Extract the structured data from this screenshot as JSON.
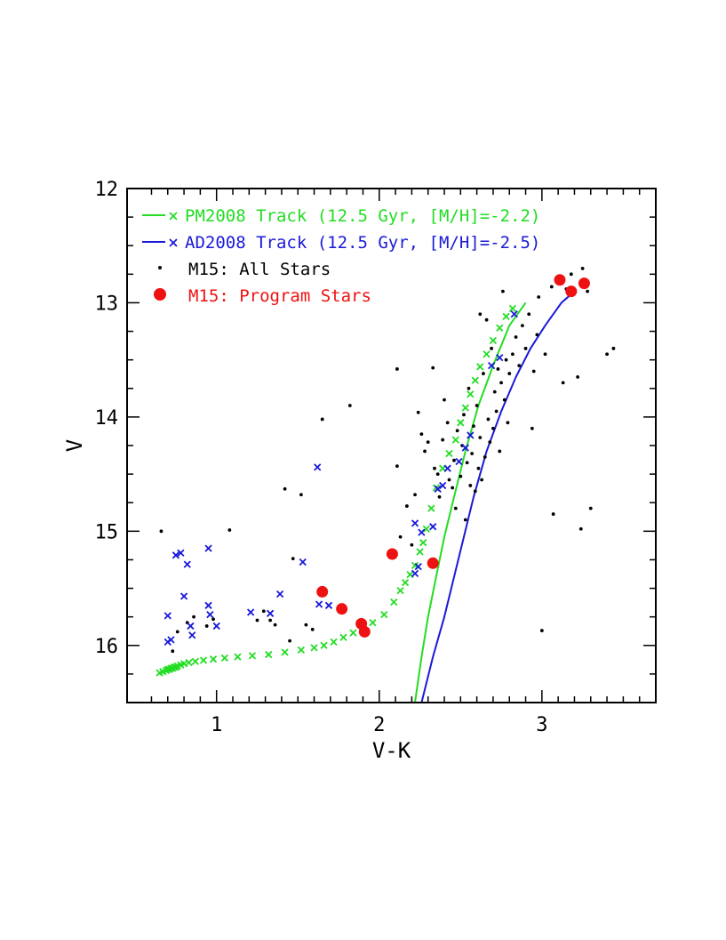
{
  "chart_data": {
    "type": "scatter",
    "xlabel": "V-K",
    "ylabel": "V",
    "xlim": [
      0.45,
      3.7
    ],
    "ylim": [
      16.5,
      12.0
    ],
    "y_inverted": true,
    "grid": false,
    "legend_position": "top-left",
    "x_ticks": [
      1,
      2,
      3
    ],
    "x_tick_labels": [
      "1",
      "2",
      "3"
    ],
    "y_ticks": [
      12,
      13,
      14,
      15,
      16
    ],
    "y_tick_labels": [
      "12",
      "13",
      "14",
      "15",
      "16"
    ],
    "legend": [
      {
        "label": "PM2008 Track (12.5 Gyr, [M/H]=-2.2)",
        "color": "#22dd22",
        "marker": "line-cross"
      },
      {
        "label": "AD2008 Track (12.5 Gyr, [M/H]=-2.5)",
        "color": "#1a1ad8",
        "marker": "line-cross"
      },
      {
        "label": "M15: All Stars",
        "color": "#000000",
        "marker": "dot"
      },
      {
        "label": "M15: Program Stars",
        "color": "#ee1111",
        "marker": "big-dot"
      }
    ],
    "series": [
      {
        "name": "PM2008 Track (12.5 Gyr, [M/H]=-2.2)",
        "kind": "line",
        "color": "#22dd22",
        "points": [
          [
            2.22,
            16.5
          ],
          [
            2.26,
            16.1
          ],
          [
            2.3,
            15.75
          ],
          [
            2.35,
            15.4
          ],
          [
            2.4,
            15.05
          ],
          [
            2.46,
            14.7
          ],
          [
            2.53,
            14.3
          ],
          [
            2.61,
            13.9
          ],
          [
            2.7,
            13.55
          ],
          [
            2.8,
            13.2
          ],
          [
            2.9,
            13.0
          ]
        ]
      },
      {
        "name": "PM2008 Track (12.5 Gyr, [M/H]=-2.2)",
        "kind": "cross",
        "color": "#22dd22",
        "points": [
          [
            0.65,
            16.24
          ],
          [
            0.67,
            16.23
          ],
          [
            0.69,
            16.22
          ],
          [
            0.7,
            16.21
          ],
          [
            0.71,
            16.21
          ],
          [
            0.72,
            16.2
          ],
          [
            0.73,
            16.2
          ],
          [
            0.74,
            16.19
          ],
          [
            0.75,
            16.19
          ],
          [
            0.76,
            16.18
          ],
          [
            0.78,
            16.17
          ],
          [
            0.8,
            16.16
          ],
          [
            0.83,
            16.15
          ],
          [
            0.87,
            16.14
          ],
          [
            0.92,
            16.13
          ],
          [
            0.98,
            16.12
          ],
          [
            1.05,
            16.11
          ],
          [
            1.13,
            16.1
          ],
          [
            1.22,
            16.09
          ],
          [
            1.32,
            16.08
          ],
          [
            1.42,
            16.06
          ],
          [
            1.52,
            16.04
          ],
          [
            1.6,
            16.02
          ],
          [
            1.66,
            16.0
          ],
          [
            1.72,
            15.97
          ],
          [
            1.78,
            15.93
          ],
          [
            1.84,
            15.89
          ],
          [
            1.9,
            15.85
          ],
          [
            1.96,
            15.8
          ],
          [
            2.03,
            15.73
          ],
          [
            2.09,
            15.62
          ],
          [
            2.13,
            15.52
          ],
          [
            2.16,
            15.45
          ],
          [
            2.19,
            15.38
          ],
          [
            2.22,
            15.3
          ],
          [
            2.25,
            15.18
          ],
          [
            2.27,
            15.1
          ],
          [
            2.29,
            14.98
          ],
          [
            2.32,
            14.8
          ],
          [
            2.35,
            14.62
          ],
          [
            2.39,
            14.45
          ],
          [
            2.43,
            14.32
          ],
          [
            2.47,
            14.2
          ],
          [
            2.5,
            14.05
          ],
          [
            2.53,
            13.92
          ],
          [
            2.56,
            13.8
          ],
          [
            2.59,
            13.68
          ],
          [
            2.62,
            13.56
          ],
          [
            2.66,
            13.45
          ],
          [
            2.7,
            13.33
          ],
          [
            2.74,
            13.22
          ],
          [
            2.78,
            13.12
          ],
          [
            2.82,
            13.05
          ]
        ]
      },
      {
        "name": "AD2008 Track (12.5 Gyr, [M/H]=-2.5)",
        "kind": "line",
        "color": "#1a1ad8",
        "points": [
          [
            2.26,
            16.5
          ],
          [
            2.33,
            16.1
          ],
          [
            2.4,
            15.75
          ],
          [
            2.46,
            15.4
          ],
          [
            2.52,
            15.05
          ],
          [
            2.58,
            14.7
          ],
          [
            2.66,
            14.3
          ],
          [
            2.75,
            13.95
          ],
          [
            2.84,
            13.65
          ],
          [
            2.93,
            13.4
          ],
          [
            3.02,
            13.2
          ],
          [
            3.12,
            13.0
          ],
          [
            3.2,
            12.9
          ]
        ]
      },
      {
        "name": "AD2008 Track (12.5 Gyr, [M/H]=-2.5)",
        "kind": "cross",
        "color": "#1a1ad8",
        "points": [
          [
            0.7,
            15.74
          ],
          [
            0.7,
            15.97
          ],
          [
            0.72,
            15.95
          ],
          [
            0.75,
            15.21
          ],
          [
            0.78,
            15.19
          ],
          [
            0.8,
            15.57
          ],
          [
            0.82,
            15.29
          ],
          [
            0.84,
            15.83
          ],
          [
            0.85,
            15.91
          ],
          [
            0.95,
            15.15
          ],
          [
            0.95,
            15.65
          ],
          [
            0.96,
            15.73
          ],
          [
            1.0,
            15.83
          ],
          [
            1.21,
            15.71
          ],
          [
            1.33,
            15.72
          ],
          [
            1.39,
            15.55
          ],
          [
            1.53,
            15.27
          ],
          [
            1.62,
            14.44
          ],
          [
            1.63,
            15.64
          ],
          [
            1.69,
            15.65
          ],
          [
            2.22,
            14.93
          ],
          [
            2.22,
            15.37
          ],
          [
            2.24,
            15.31
          ],
          [
            2.26,
            15.01
          ],
          [
            2.33,
            14.96
          ],
          [
            2.36,
            14.63
          ],
          [
            2.39,
            14.6
          ],
          [
            2.42,
            14.45
          ],
          [
            2.49,
            14.39
          ],
          [
            2.53,
            14.27
          ],
          [
            2.56,
            14.16
          ],
          [
            2.69,
            13.55
          ],
          [
            2.74,
            13.48
          ],
          [
            2.83,
            13.1
          ]
        ]
      },
      {
        "name": "M15: All Stars",
        "kind": "dot",
        "color": "#000000",
        "points": [
          [
            0.66,
            15.0
          ],
          [
            0.73,
            16.05
          ],
          [
            0.76,
            15.88
          ],
          [
            0.82,
            15.8
          ],
          [
            0.86,
            15.75
          ],
          [
            0.94,
            15.83
          ],
          [
            0.98,
            15.77
          ],
          [
            1.08,
            14.99
          ],
          [
            1.25,
            15.78
          ],
          [
            1.29,
            15.7
          ],
          [
            1.33,
            15.78
          ],
          [
            1.36,
            15.82
          ],
          [
            1.42,
            14.63
          ],
          [
            1.45,
            15.96
          ],
          [
            1.47,
            15.24
          ],
          [
            1.52,
            14.68
          ],
          [
            1.55,
            15.82
          ],
          [
            1.59,
            15.86
          ],
          [
            1.65,
            14.02
          ],
          [
            1.82,
            13.9
          ],
          [
            2.11,
            13.58
          ],
          [
            2.11,
            14.43
          ],
          [
            2.13,
            15.05
          ],
          [
            2.17,
            14.78
          ],
          [
            2.2,
            15.12
          ],
          [
            2.22,
            14.68
          ],
          [
            2.24,
            13.96
          ],
          [
            2.26,
            14.15
          ],
          [
            2.28,
            14.3
          ],
          [
            2.3,
            14.22
          ],
          [
            2.33,
            13.57
          ],
          [
            2.34,
            14.45
          ],
          [
            2.36,
            14.5
          ],
          [
            2.37,
            14.7
          ],
          [
            2.39,
            14.2
          ],
          [
            2.4,
            13.85
          ],
          [
            2.42,
            14.05
          ],
          [
            2.43,
            14.55
          ],
          [
            2.45,
            14.62
          ],
          [
            2.46,
            14.38
          ],
          [
            2.47,
            14.8
          ],
          [
            2.48,
            14.12
          ],
          [
            2.5,
            14.52
          ],
          [
            2.51,
            14.25
          ],
          [
            2.52,
            13.98
          ],
          [
            2.53,
            14.9
          ],
          [
            2.54,
            14.4
          ],
          [
            2.55,
            13.75
          ],
          [
            2.56,
            14.6
          ],
          [
            2.57,
            14.32
          ],
          [
            2.58,
            14.08
          ],
          [
            2.59,
            14.65
          ],
          [
            2.6,
            13.9
          ],
          [
            2.61,
            14.45
          ],
          [
            2.62,
            14.18
          ],
          [
            2.62,
            13.1
          ],
          [
            2.63,
            14.55
          ],
          [
            2.64,
            13.62
          ],
          [
            2.65,
            14.35
          ],
          [
            2.66,
            13.15
          ],
          [
            2.67,
            14.02
          ],
          [
            2.68,
            14.22
          ],
          [
            2.69,
            13.4
          ],
          [
            2.7,
            14.1
          ],
          [
            2.71,
            13.78
          ],
          [
            2.72,
            13.95
          ],
          [
            2.73,
            13.58
          ],
          [
            2.74,
            14.3
          ],
          [
            2.75,
            13.7
          ],
          [
            2.76,
            12.9
          ],
          [
            2.77,
            13.85
          ],
          [
            2.78,
            13.5
          ],
          [
            2.79,
            14.05
          ],
          [
            2.8,
            13.62
          ],
          [
            2.82,
            13.45
          ],
          [
            2.84,
            13.3
          ],
          [
            2.86,
            13.55
          ],
          [
            2.88,
            13.2
          ],
          [
            2.9,
            13.4
          ],
          [
            2.92,
            13.1
          ],
          [
            2.94,
            14.1
          ],
          [
            2.95,
            13.6
          ],
          [
            2.97,
            13.28
          ],
          [
            2.98,
            12.95
          ],
          [
            3.02,
            13.45
          ],
          [
            3.06,
            12.86
          ],
          [
            3.07,
            14.85
          ],
          [
            3.1,
            12.8
          ],
          [
            3.13,
            13.7
          ],
          [
            3.15,
            12.88
          ],
          [
            3.18,
            12.75
          ],
          [
            3.22,
            13.65
          ],
          [
            3.24,
            14.98
          ],
          [
            3.25,
            12.7
          ],
          [
            3.28,
            12.9
          ],
          [
            3.3,
            14.8
          ],
          [
            3.4,
            13.45
          ],
          [
            3.44,
            13.4
          ],
          [
            3.0,
            15.87
          ]
        ]
      },
      {
        "name": "M15: Program Stars",
        "kind": "big-dot",
        "color": "#ee1111",
        "points": [
          [
            1.65,
            15.53
          ],
          [
            1.77,
            15.68
          ],
          [
            1.89,
            15.81
          ],
          [
            1.91,
            15.88
          ],
          [
            2.08,
            15.2
          ],
          [
            2.33,
            15.28
          ],
          [
            3.11,
            12.8
          ],
          [
            3.18,
            12.9
          ],
          [
            3.26,
            12.83
          ]
        ]
      }
    ]
  }
}
